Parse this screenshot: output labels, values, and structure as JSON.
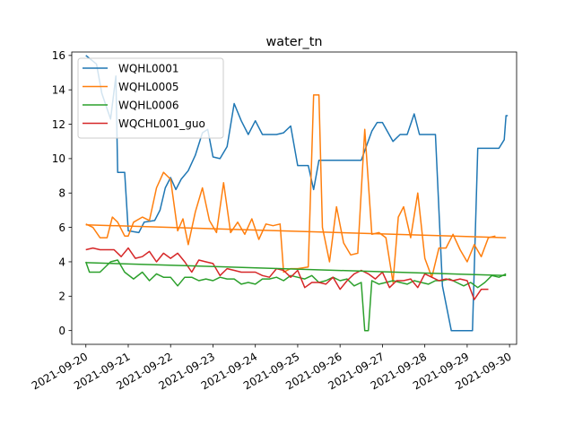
{
  "chart_data": {
    "type": "line",
    "title": "water_tn",
    "xlabel": "",
    "ylabel": "",
    "xlim": [
      "2021-09-19T16:00",
      "2021-09-30T04:00"
    ],
    "ylim": [
      -0.8,
      16.2
    ],
    "x_ticks": [
      "2021-09-20",
      "2021-09-21",
      "2021-09-22",
      "2021-09-23",
      "2021-09-24",
      "2021-09-25",
      "2021-09-26",
      "2021-09-27",
      "2021-09-28",
      "2021-09-29",
      "2021-09-30"
    ],
    "y_ticks": [
      0,
      2,
      4,
      6,
      8,
      10,
      12,
      14,
      16
    ],
    "grid": false,
    "legend_position": "upper-left",
    "series": [
      {
        "name": "WQHL0001",
        "color": "#1f77b4",
        "points": [
          [
            "2021-09-20T00:00",
            16.0
          ],
          [
            "2021-09-20T06:00",
            15.5
          ],
          [
            "2021-09-20T09:00",
            13.8
          ],
          [
            "2021-09-20T14:00",
            12.3
          ],
          [
            "2021-09-20T17:00",
            14.8
          ],
          [
            "2021-09-20T18:00",
            9.2
          ],
          [
            "2021-09-20T22:00",
            9.2
          ],
          [
            "2021-09-21T00:00",
            5.8
          ],
          [
            "2021-09-21T06:00",
            5.7
          ],
          [
            "2021-09-21T09:00",
            6.3
          ],
          [
            "2021-09-21T15:00",
            6.4
          ],
          [
            "2021-09-21T18:00",
            7.0
          ],
          [
            "2021-09-21T21:00",
            8.3
          ],
          [
            "2021-09-22T00:00",
            8.9
          ],
          [
            "2021-09-22T03:00",
            8.2
          ],
          [
            "2021-09-22T06:00",
            8.8
          ],
          [
            "2021-09-22T10:00",
            9.3
          ],
          [
            "2021-09-22T14:00",
            10.2
          ],
          [
            "2021-09-22T18:00",
            11.5
          ],
          [
            "2021-09-22T21:00",
            11.7
          ],
          [
            "2021-09-23T00:00",
            10.1
          ],
          [
            "2021-09-23T04:00",
            10.0
          ],
          [
            "2021-09-23T08:00",
            10.7
          ],
          [
            "2021-09-23T12:00",
            13.2
          ],
          [
            "2021-09-23T16:00",
            12.2
          ],
          [
            "2021-09-23T20:00",
            11.4
          ],
          [
            "2021-09-24T00:00",
            12.2
          ],
          [
            "2021-09-24T04:00",
            11.4
          ],
          [
            "2021-09-24T08:00",
            11.4
          ],
          [
            "2021-09-24T12:00",
            11.4
          ],
          [
            "2021-09-24T16:00",
            11.5
          ],
          [
            "2021-09-24T20:00",
            11.9
          ],
          [
            "2021-09-25T00:00",
            9.6
          ],
          [
            "2021-09-25T06:00",
            9.6
          ],
          [
            "2021-09-25T09:00",
            8.2
          ],
          [
            "2021-09-25T12:00",
            9.9
          ],
          [
            "2021-09-25T18:00",
            9.9
          ],
          [
            "2021-09-26T00:00",
            9.9
          ],
          [
            "2021-09-26T06:00",
            9.9
          ],
          [
            "2021-09-26T12:00",
            9.9
          ],
          [
            "2021-09-26T18:00",
            11.6
          ],
          [
            "2021-09-26T21:00",
            12.1
          ],
          [
            "2021-09-27T00:00",
            12.1
          ],
          [
            "2021-09-27T06:00",
            11.0
          ],
          [
            "2021-09-27T10:00",
            11.4
          ],
          [
            "2021-09-27T14:00",
            11.4
          ],
          [
            "2021-09-27T18:00",
            12.6
          ],
          [
            "2021-09-27T21:00",
            11.4
          ],
          [
            "2021-09-28T00:00",
            11.4
          ],
          [
            "2021-09-28T06:00",
            11.4
          ],
          [
            "2021-09-28T10:00",
            2.6
          ],
          [
            "2021-09-28T15:00",
            0.0
          ],
          [
            "2021-09-28T20:00",
            0.0
          ],
          [
            "2021-09-29T03:00",
            0.0
          ],
          [
            "2021-09-29T06:00",
            10.6
          ],
          [
            "2021-09-29T12:00",
            10.6
          ],
          [
            "2021-09-29T18:00",
            10.6
          ],
          [
            "2021-09-29T21:00",
            11.1
          ],
          [
            "2021-09-29T22:00",
            12.5
          ],
          [
            "2021-09-29T23:00",
            12.5
          ]
        ]
      },
      {
        "name": "WQHL0005",
        "color": "#ff7f0e",
        "points": [
          [
            "2021-09-20T00:00",
            6.2
          ],
          [
            "2021-09-20T04:00",
            6.0
          ],
          [
            "2021-09-20T08:00",
            5.4
          ],
          [
            "2021-09-20T12:00",
            5.4
          ],
          [
            "2021-09-20T15:00",
            6.6
          ],
          [
            "2021-09-20T18:00",
            6.3
          ],
          [
            "2021-09-20T22:00",
            5.5
          ],
          [
            "2021-09-21T00:00",
            5.5
          ],
          [
            "2021-09-21T03:00",
            6.3
          ],
          [
            "2021-09-21T08:00",
            6.6
          ],
          [
            "2021-09-21T12:00",
            6.4
          ],
          [
            "2021-09-21T16:00",
            8.3
          ],
          [
            "2021-09-21T20:00",
            9.2
          ],
          [
            "2021-09-22T00:00",
            8.8
          ],
          [
            "2021-09-22T04:00",
            5.8
          ],
          [
            "2021-09-22T07:00",
            6.5
          ],
          [
            "2021-09-22T10:00",
            5.0
          ],
          [
            "2021-09-22T14:00",
            6.9
          ],
          [
            "2021-09-22T18:00",
            8.3
          ],
          [
            "2021-09-22T22:00",
            6.4
          ],
          [
            "2021-09-23T02:00",
            5.7
          ],
          [
            "2021-09-23T06:00",
            8.6
          ],
          [
            "2021-09-23T10:00",
            5.7
          ],
          [
            "2021-09-23T14:00",
            6.3
          ],
          [
            "2021-09-23T18:00",
            5.6
          ],
          [
            "2021-09-23T22:00",
            6.5
          ],
          [
            "2021-09-24T02:00",
            5.3
          ],
          [
            "2021-09-24T06:00",
            6.2
          ],
          [
            "2021-09-24T10:00",
            6.1
          ],
          [
            "2021-09-24T14:00",
            6.2
          ],
          [
            "2021-09-24T16:00",
            3.4
          ],
          [
            "2021-09-24T20:00",
            3.6
          ],
          [
            "2021-09-25T00:00",
            3.6
          ],
          [
            "2021-09-25T06:00",
            3.7
          ],
          [
            "2021-09-25T09:00",
            13.7
          ],
          [
            "2021-09-25T12:00",
            13.7
          ],
          [
            "2021-09-25T14:00",
            6.0
          ],
          [
            "2021-09-25T18:00",
            4.0
          ],
          [
            "2021-09-25T22:00",
            7.2
          ],
          [
            "2021-09-26T02:00",
            5.1
          ],
          [
            "2021-09-26T06:00",
            4.4
          ],
          [
            "2021-09-26T10:00",
            4.5
          ],
          [
            "2021-09-26T14:00",
            11.7
          ],
          [
            "2021-09-26T18:00",
            5.6
          ],
          [
            "2021-09-26T22:00",
            5.7
          ],
          [
            "2021-09-27T02:00",
            5.4
          ],
          [
            "2021-09-27T06:00",
            2.8
          ],
          [
            "2021-09-27T09:00",
            6.6
          ],
          [
            "2021-09-27T12:00",
            7.2
          ],
          [
            "2021-09-27T16:00",
            5.4
          ],
          [
            "2021-09-27T20:00",
            8.0
          ],
          [
            "2021-09-28T00:00",
            4.2
          ],
          [
            "2021-09-28T04:00",
            3.1
          ],
          [
            "2021-09-28T08:00",
            4.8
          ],
          [
            "2021-09-28T12:00",
            4.8
          ],
          [
            "2021-09-28T16:00",
            5.6
          ],
          [
            "2021-09-28T20:00",
            4.7
          ],
          [
            "2021-09-29T00:00",
            4.0
          ],
          [
            "2021-09-29T04:00",
            5.0
          ],
          [
            "2021-09-29T08:00",
            4.3
          ],
          [
            "2021-09-29T12:00",
            5.4
          ],
          [
            "2021-09-29T16:00",
            5.5
          ]
        ]
      },
      {
        "name": "WQHL0006",
        "color": "#2ca02c",
        "points": [
          [
            "2021-09-20T00:00",
            4.0
          ],
          [
            "2021-09-20T02:00",
            3.4
          ],
          [
            "2021-09-20T08:00",
            3.4
          ],
          [
            "2021-09-20T14:00",
            4.0
          ],
          [
            "2021-09-20T18:00",
            4.1
          ],
          [
            "2021-09-20T22:00",
            3.4
          ],
          [
            "2021-09-21T03:00",
            3.0
          ],
          [
            "2021-09-21T08:00",
            3.4
          ],
          [
            "2021-09-21T12:00",
            2.9
          ],
          [
            "2021-09-21T16:00",
            3.3
          ],
          [
            "2021-09-21T20:00",
            3.1
          ],
          [
            "2021-09-22T00:00",
            3.1
          ],
          [
            "2021-09-22T04:00",
            2.6
          ],
          [
            "2021-09-22T08:00",
            3.1
          ],
          [
            "2021-09-22T12:00",
            3.1
          ],
          [
            "2021-09-22T16:00",
            2.9
          ],
          [
            "2021-09-22T20:00",
            3.0
          ],
          [
            "2021-09-23T00:00",
            2.9
          ],
          [
            "2021-09-23T04:00",
            3.1
          ],
          [
            "2021-09-23T08:00",
            3.0
          ],
          [
            "2021-09-23T12:00",
            3.0
          ],
          [
            "2021-09-23T16:00",
            2.7
          ],
          [
            "2021-09-23T20:00",
            2.8
          ],
          [
            "2021-09-24T00:00",
            2.7
          ],
          [
            "2021-09-24T04:00",
            3.0
          ],
          [
            "2021-09-24T08:00",
            3.0
          ],
          [
            "2021-09-24T12:00",
            3.1
          ],
          [
            "2021-09-24T16:00",
            2.9
          ],
          [
            "2021-09-24T20:00",
            3.2
          ],
          [
            "2021-09-25T00:00",
            3.1
          ],
          [
            "2021-09-25T04:00",
            3.0
          ],
          [
            "2021-09-25T08:00",
            3.2
          ],
          [
            "2021-09-25T12:00",
            2.8
          ],
          [
            "2021-09-25T16:00",
            2.9
          ],
          [
            "2021-09-25T20:00",
            3.1
          ],
          [
            "2021-09-26T00:00",
            2.9
          ],
          [
            "2021-09-26T04:00",
            3.0
          ],
          [
            "2021-09-26T08:00",
            2.6
          ],
          [
            "2021-09-26T12:00",
            2.8
          ],
          [
            "2021-09-26T14:00",
            0.0
          ],
          [
            "2021-09-26T16:00",
            0.0
          ],
          [
            "2021-09-26T18:00",
            2.9
          ],
          [
            "2021-09-26T22:00",
            2.7
          ],
          [
            "2021-09-27T02:00",
            2.8
          ],
          [
            "2021-09-27T06:00",
            2.9
          ],
          [
            "2021-09-27T10:00",
            2.8
          ],
          [
            "2021-09-27T14:00",
            2.7
          ],
          [
            "2021-09-27T18:00",
            2.9
          ],
          [
            "2021-09-27T22:00",
            2.8
          ],
          [
            "2021-09-28T02:00",
            2.7
          ],
          [
            "2021-09-28T06:00",
            2.9
          ],
          [
            "2021-09-28T10:00",
            2.9
          ],
          [
            "2021-09-28T14:00",
            3.0
          ],
          [
            "2021-09-28T18:00",
            2.8
          ],
          [
            "2021-09-28T22:00",
            2.6
          ],
          [
            "2021-09-29T02:00",
            2.8
          ],
          [
            "2021-09-29T06:00",
            2.5
          ],
          [
            "2021-09-29T10:00",
            2.8
          ],
          [
            "2021-09-29T14:00",
            3.2
          ],
          [
            "2021-09-29T18:00",
            3.1
          ],
          [
            "2021-09-29T22:00",
            3.3
          ]
        ]
      },
      {
        "name": "WQCHL001_guo",
        "color": "#d62728",
        "points": [
          [
            "2021-09-20T00:00",
            4.7
          ],
          [
            "2021-09-20T04:00",
            4.8
          ],
          [
            "2021-09-20T08:00",
            4.7
          ],
          [
            "2021-09-20T12:00",
            4.7
          ],
          [
            "2021-09-20T16:00",
            4.7
          ],
          [
            "2021-09-20T20:00",
            4.3
          ],
          [
            "2021-09-21T00:00",
            4.8
          ],
          [
            "2021-09-21T04:00",
            4.2
          ],
          [
            "2021-09-21T08:00",
            4.3
          ],
          [
            "2021-09-21T12:00",
            4.6
          ],
          [
            "2021-09-21T16:00",
            4.0
          ],
          [
            "2021-09-21T20:00",
            4.5
          ],
          [
            "2021-09-22T00:00",
            4.2
          ],
          [
            "2021-09-22T04:00",
            4.5
          ],
          [
            "2021-09-22T08:00",
            4.0
          ],
          [
            "2021-09-22T12:00",
            3.4
          ],
          [
            "2021-09-22T16:00",
            4.1
          ],
          [
            "2021-09-22T20:00",
            4.0
          ],
          [
            "2021-09-23T00:00",
            3.9
          ],
          [
            "2021-09-23T04:00",
            3.2
          ],
          [
            "2021-09-23T08:00",
            3.6
          ],
          [
            "2021-09-23T12:00",
            3.5
          ],
          [
            "2021-09-23T16:00",
            3.4
          ],
          [
            "2021-09-23T20:00",
            3.4
          ],
          [
            "2021-09-24T00:00",
            3.4
          ],
          [
            "2021-09-24T04:00",
            3.2
          ],
          [
            "2021-09-24T08:00",
            3.1
          ],
          [
            "2021-09-24T12:00",
            3.6
          ],
          [
            "2021-09-24T16:00",
            3.5
          ],
          [
            "2021-09-24T20:00",
            3.1
          ],
          [
            "2021-09-25T00:00",
            3.5
          ],
          [
            "2021-09-25T04:00",
            2.5
          ],
          [
            "2021-09-25T08:00",
            2.8
          ],
          [
            "2021-09-25T12:00",
            2.8
          ],
          [
            "2021-09-25T16:00",
            2.7
          ],
          [
            "2021-09-25T20:00",
            3.1
          ],
          [
            "2021-09-26T00:00",
            2.4
          ],
          [
            "2021-09-26T04:00",
            2.9
          ],
          [
            "2021-09-26T08:00",
            3.3
          ],
          [
            "2021-09-26T12:00",
            3.5
          ],
          [
            "2021-09-26T16:00",
            3.3
          ],
          [
            "2021-09-26T20:00",
            3.0
          ],
          [
            "2021-09-27T00:00",
            3.4
          ],
          [
            "2021-09-27T04:00",
            2.5
          ],
          [
            "2021-09-27T08:00",
            2.9
          ],
          [
            "2021-09-27T12:00",
            2.9
          ],
          [
            "2021-09-27T16:00",
            3.0
          ],
          [
            "2021-09-27T20:00",
            2.5
          ],
          [
            "2021-09-28T00:00",
            3.3
          ],
          [
            "2021-09-28T04:00",
            3.1
          ],
          [
            "2021-09-28T08:00",
            2.9
          ],
          [
            "2021-09-28T12:00",
            3.0
          ],
          [
            "2021-09-28T16:00",
            2.9
          ],
          [
            "2021-09-28T20:00",
            3.0
          ],
          [
            "2021-09-29T00:00",
            2.9
          ],
          [
            "2021-09-29T04:00",
            1.8
          ],
          [
            "2021-09-29T08:00",
            2.4
          ],
          [
            "2021-09-29T12:00",
            2.4
          ]
        ]
      }
    ],
    "trend_lines": [
      {
        "color": "#ff7f0e",
        "from": [
          "2021-09-20T00:00",
          6.15
        ],
        "to": [
          "2021-09-29T22:00",
          5.4
        ]
      },
      {
        "color": "#2ca02c",
        "from": [
          "2021-09-20T00:00",
          3.95
        ],
        "to": [
          "2021-09-29T22:00",
          3.2
        ]
      }
    ]
  }
}
